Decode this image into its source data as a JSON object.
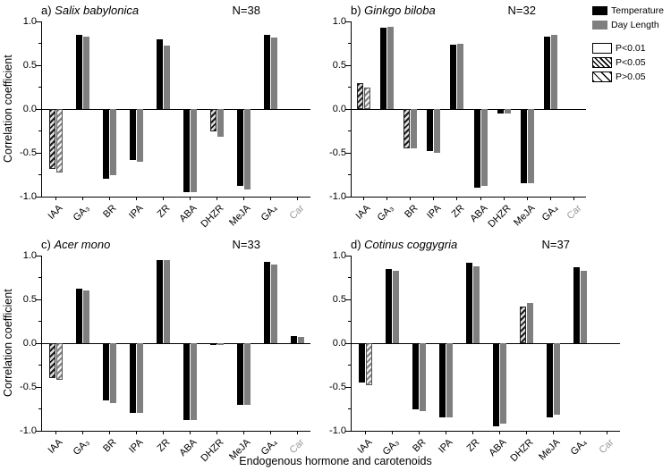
{
  "figure": {
    "xlabel": "Endogenous hormone and carotenoids",
    "ylabel": "Correlation coefficient"
  },
  "legend": {
    "series": [
      {
        "name": "Temperature",
        "color": "#000000"
      },
      {
        "name": "Day Length",
        "color": "#7f7f7f"
      }
    ],
    "significance": [
      {
        "label": "P<0.01",
        "pattern": "open"
      },
      {
        "label": "P<0.05",
        "pattern": "hatch-dense"
      },
      {
        "label": "P>0.05",
        "pattern": "hatch-sparse"
      }
    ]
  },
  "chart_data": {
    "type": "bar",
    "categories": [
      "IAA",
      "GA₃",
      "BR",
      "IPA",
      "ZR",
      "ABA",
      "DHZR",
      "MeJA",
      "GA₄",
      "Car"
    ],
    "muted_category": "Car",
    "ylim": [
      -1.0,
      1.0
    ],
    "yticks": [
      1.0,
      0.5,
      0.0,
      -0.5,
      -1.0
    ],
    "panels": [
      {
        "label_prefix": "a) ",
        "species": "Salix babylonica",
        "n_label": "N=38",
        "series": [
          {
            "name": "Temperature",
            "values": [
              -0.68,
              0.85,
              -0.8,
              -0.58,
              0.8,
              -0.95,
              -0.25,
              -0.88,
              0.85,
              null
            ],
            "patterns": [
              "hatch",
              "solid",
              "solid",
              "solid",
              "solid",
              "solid",
              "hatch",
              "solid",
              "solid",
              null
            ]
          },
          {
            "name": "Day Length",
            "values": [
              -0.72,
              0.83,
              -0.75,
              -0.6,
              0.72,
              -0.95,
              -0.32,
              -0.92,
              0.82,
              null
            ],
            "patterns": [
              "hatch",
              "solid",
              "solid",
              "solid",
              "solid",
              "solid",
              "solid",
              "solid",
              "solid",
              null
            ]
          }
        ]
      },
      {
        "label_prefix": "b) ",
        "species": "Ginkgo biloba",
        "n_label": "N=32",
        "series": [
          {
            "name": "Temperature",
            "values": [
              0.3,
              0.93,
              -0.45,
              -0.48,
              0.73,
              -0.9,
              -0.05,
              -0.85,
              0.83,
              null
            ],
            "patterns": [
              "hatch",
              "solid",
              "hatch",
              "solid",
              "solid",
              "solid",
              "solid",
              "solid",
              "solid",
              null
            ]
          },
          {
            "name": "Day Length",
            "values": [
              0.25,
              0.94,
              -0.45,
              -0.5,
              0.75,
              -0.88,
              -0.05,
              -0.85,
              0.85,
              null
            ],
            "patterns": [
              "hatch",
              "solid",
              "solid",
              "solid",
              "solid",
              "solid",
              "solid",
              "solid",
              "solid",
              null
            ]
          }
        ]
      },
      {
        "label_prefix": "c) ",
        "species": "Acer mono",
        "n_label": "N=33",
        "series": [
          {
            "name": "Temperature",
            "values": [
              -0.4,
              0.62,
              -0.65,
              -0.8,
              0.95,
              -0.88,
              -0.02,
              -0.7,
              0.93,
              0.08
            ],
            "patterns": [
              "hatch",
              "solid",
              "solid",
              "solid",
              "solid",
              "solid",
              "solid",
              "solid",
              "solid",
              "solid"
            ]
          },
          {
            "name": "Day Length",
            "values": [
              -0.42,
              0.6,
              -0.68,
              -0.8,
              0.95,
              -0.88,
              -0.02,
              -0.7,
              0.9,
              0.07
            ],
            "patterns": [
              "hatch",
              "solid",
              "solid",
              "solid",
              "solid",
              "solid",
              "solid",
              "solid",
              "solid",
              "solid"
            ]
          }
        ]
      },
      {
        "label_prefix": "d) ",
        "species": "Cotinus coggygria",
        "n_label": "N=37",
        "series": [
          {
            "name": "Temperature",
            "values": [
              -0.45,
              0.85,
              -0.75,
              -0.85,
              0.92,
              -0.95,
              0.42,
              -0.85,
              0.87,
              null
            ],
            "patterns": [
              "solid",
              "solid",
              "solid",
              "solid",
              "solid",
              "solid",
              "hatch",
              "solid",
              "solid",
              null
            ]
          },
          {
            "name": "Day Length",
            "values": [
              -0.48,
              0.83,
              -0.78,
              -0.85,
              0.88,
              -0.92,
              0.46,
              -0.82,
              0.83,
              null
            ],
            "patterns": [
              "hatch",
              "solid",
              "solid",
              "solid",
              "solid",
              "solid",
              "solid",
              "solid",
              "solid",
              null
            ]
          }
        ]
      }
    ]
  }
}
